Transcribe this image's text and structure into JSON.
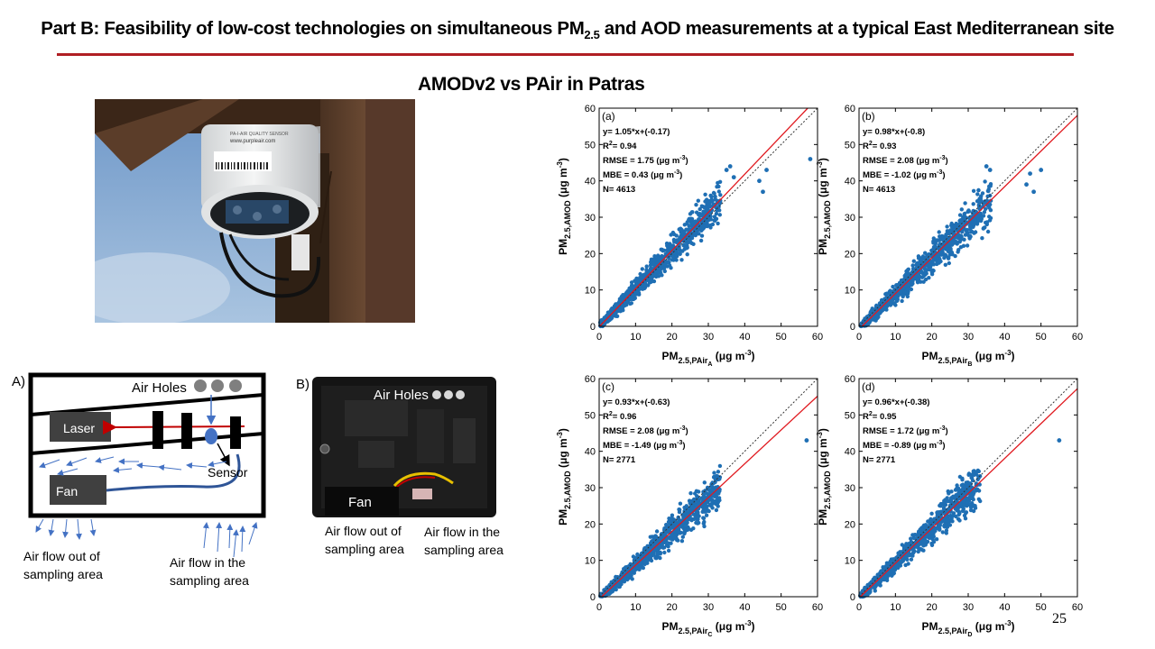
{
  "slide": {
    "title_main": "Part B: Feasibility of low-cost technologies on simultaneous PM",
    "title_sub": "2.5",
    "title_tail": " and AOD measurements at a typical East Mediterranean site",
    "subtitle": "AMODv2 vs PAir in Patras",
    "page_number": "25",
    "accent_color": "#b01e23"
  },
  "photo": {
    "sensor_label_1": "PA-I-AIR QUALITY SENSOR",
    "sensor_label_2": "www.purpleair.com"
  },
  "diagram_a": {
    "panel": "A)",
    "air_holes": "Air Holes",
    "laser": "Laser",
    "sensor": "Sensor",
    "fan": "Fan",
    "flow_out": [
      "Air flow out of",
      "sampling area"
    ],
    "flow_in": [
      "Air flow in the",
      "sampling area"
    ]
  },
  "diagram_b": {
    "panel": "B)",
    "air_holes": "Air Holes",
    "fan": "Fan",
    "flow_out": [
      "Air flow out of",
      "sampling area"
    ],
    "flow_in": [
      "Air flow in the",
      "sampling area"
    ]
  },
  "chart_data": [
    {
      "type": "scatter",
      "panel": "(a)",
      "xlabel": "PM2.5,PAir_A (μg m-3)",
      "ylabel": "PM2.5,AMOD (μg m-3)",
      "xlim": [
        0,
        60
      ],
      "ylim": [
        0,
        60
      ],
      "ticks": [
        0,
        10,
        20,
        30,
        40,
        50,
        60
      ],
      "fit": {
        "slope": 1.05,
        "intercept": -0.17
      },
      "stats": [
        "y= 1.05*x+(-0.17)",
        "R2= 0.94",
        "RMSE = 1.75 (μg m-3)",
        "MBE = 0.43 (μg m-3)",
        "N= 4613"
      ],
      "n": 4613,
      "max_x": 33,
      "outliers": [
        [
          58,
          46
        ],
        [
          46,
          43
        ],
        [
          44,
          40
        ],
        [
          45,
          37
        ],
        [
          37,
          41
        ],
        [
          36,
          44
        ],
        [
          35,
          43
        ]
      ],
      "series_color": "#1f6fb4",
      "fit_color": "#e0191f"
    },
    {
      "type": "scatter",
      "panel": "(b)",
      "xlabel": "PM2.5,PAir_B (μg m-3)",
      "ylabel": "PM2.5,AMOD (μg m-3)",
      "xlim": [
        0,
        60
      ],
      "ylim": [
        0,
        60
      ],
      "ticks": [
        0,
        10,
        20,
        30,
        40,
        50,
        60
      ],
      "fit": {
        "slope": 0.98,
        "intercept": -0.8
      },
      "stats": [
        "y= 0.98*x+(-0.8)",
        "R2= 0.93",
        "RMSE = 2.08 (μg m-3)",
        "MBE = -1.02 (μg m-3)",
        "N= 4613"
      ],
      "n": 4613,
      "max_x": 36,
      "outliers": [
        [
          50,
          43
        ],
        [
          47,
          42
        ],
        [
          46,
          39
        ],
        [
          48,
          37
        ],
        [
          35,
          44
        ],
        [
          36,
          43
        ]
      ],
      "series_color": "#1f6fb4",
      "fit_color": "#e0191f"
    },
    {
      "type": "scatter",
      "panel": "(c)",
      "xlabel": "PM2.5,PAir_C (μg m-3)",
      "ylabel": "PM2.5,AMOD (μg m-3)",
      "xlim": [
        0,
        60
      ],
      "ylim": [
        0,
        60
      ],
      "ticks": [
        0,
        10,
        20,
        30,
        40,
        50,
        60
      ],
      "fit": {
        "slope": 0.93,
        "intercept": -0.63
      },
      "stats": [
        "y= 0.93*x+(-0.63)",
        "R2= 0.96",
        "RMSE = 2.08 (μg m-3)",
        "MBE = -1.49 (μg m-3)",
        "N= 2771"
      ],
      "n": 2771,
      "max_x": 33,
      "outliers": [
        [
          57,
          43
        ]
      ],
      "series_color": "#1f6fb4",
      "fit_color": "#e0191f"
    },
    {
      "type": "scatter",
      "panel": "(d)",
      "xlabel": "PM2.5,PAir_D (μg m-3)",
      "ylabel": "PM2.5,AMOD (μg m-3)",
      "xlim": [
        0,
        60
      ],
      "ylim": [
        0,
        60
      ],
      "ticks": [
        0,
        10,
        20,
        30,
        40,
        50,
        60
      ],
      "fit": {
        "slope": 0.96,
        "intercept": -0.38
      },
      "stats": [
        "y= 0.96*x+(-0.38)",
        "R2= 0.95",
        "RMSE = 1.72 (μg m-3)",
        "MBE = -0.89 (μg m-3)",
        "N= 2771"
      ],
      "n": 2771,
      "max_x": 33,
      "outliers": [
        [
          55,
          43
        ]
      ],
      "series_color": "#1f6fb4",
      "fit_color": "#e0191f"
    }
  ]
}
